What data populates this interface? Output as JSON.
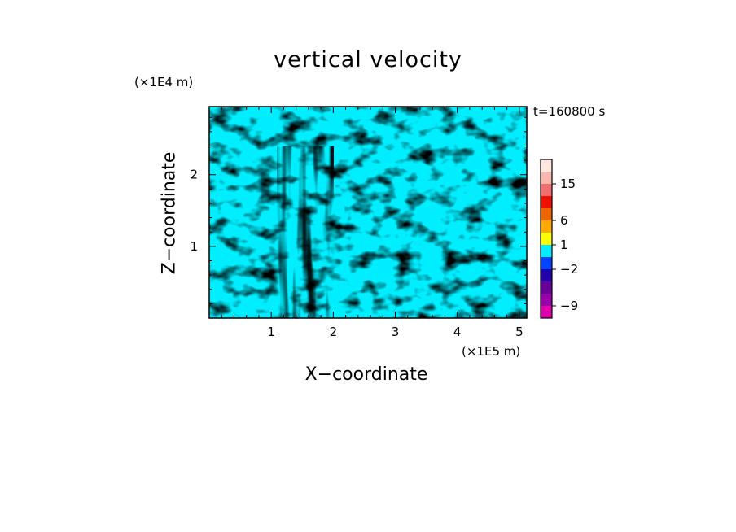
{
  "chart_data": {
    "type": "heatmap",
    "title": "vertical velocity",
    "xlabel": "X−coordinate",
    "ylabel": "Z−coordinate",
    "x_unit": "(×1E5 m)",
    "y_unit": "(×1E4 m)",
    "annotation": "t=160800 s",
    "xlim": [
      0,
      5.12
    ],
    "ylim": [
      0,
      2.95
    ],
    "x_ticks": [
      1,
      2,
      3,
      4,
      5
    ],
    "y_ticks": [
      1,
      2
    ],
    "x_tick_labels": [
      "1",
      "2",
      "3",
      "4",
      "5"
    ],
    "y_tick_labels": [
      "1",
      "2"
    ],
    "field_colors": {
      "positive": "#ffff00",
      "negative": "#00eeff"
    },
    "colorbar": {
      "labels": [
        "15",
        "6",
        "1",
        "−2",
        "−9"
      ],
      "levels": [
        15,
        6,
        1,
        -2,
        -9
      ],
      "colors": [
        "#ffe8e0",
        "#f8b8b0",
        "#f07070",
        "#ee1100",
        "#ee6600",
        "#ffaa00",
        "#ffff00",
        "#00eeff",
        "#0044ff",
        "#2200aa",
        "#660099",
        "#9900aa",
        "#dd00aa"
      ]
    }
  }
}
